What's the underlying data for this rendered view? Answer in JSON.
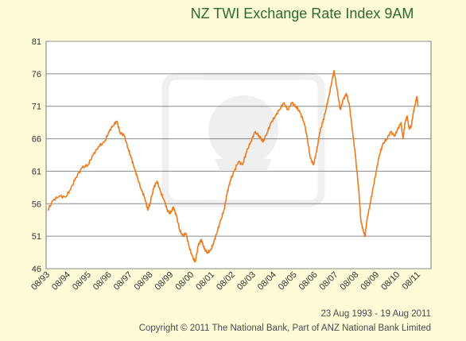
{
  "chart_data": {
    "type": "line",
    "title": "NZ TWI Exchange Rate Index 9AM",
    "date_range": "23 Aug 1993 - 19 Aug 2011",
    "copyright": "Copyright © 2011 The National Bank, Part of ANZ National Bank Limited",
    "xlabel": "",
    "ylabel": "",
    "ylim": [
      46,
      81
    ],
    "y_ticks": [
      46,
      51,
      56,
      61,
      66,
      71,
      76,
      81
    ],
    "x_ticks": [
      "08/93",
      "08/94",
      "08/95",
      "08/96",
      "08/97",
      "08/98",
      "08/99",
      "08/00",
      "08/01",
      "08/02",
      "08/03",
      "08/04",
      "08/05",
      "08/06",
      "08/07",
      "08/08",
      "08/09",
      "08/10",
      "08/11"
    ],
    "grid": "horizontal",
    "colors": {
      "line": "#f07a1a",
      "grid": "#8c8c8c",
      "plot_bg": "#ffffff",
      "page_bg": "#fefbd8",
      "title": "#2d6a2d"
    },
    "series": [
      {
        "values": [
          [
            1993.64,
            55.0
          ],
          [
            1993.9,
            56.5
          ],
          [
            1994.2,
            57.2
          ],
          [
            1994.5,
            57.0
          ],
          [
            1994.75,
            58.2
          ],
          [
            1995.0,
            60.0
          ],
          [
            1995.3,
            61.5
          ],
          [
            1995.6,
            62.0
          ],
          [
            1995.85,
            63.5
          ],
          [
            1996.1,
            64.8
          ],
          [
            1996.4,
            65.5
          ],
          [
            1996.6,
            67.0
          ],
          [
            1996.8,
            68.0
          ],
          [
            1997.0,
            68.7
          ],
          [
            1997.15,
            67.0
          ],
          [
            1997.35,
            66.5
          ],
          [
            1997.55,
            64.5
          ],
          [
            1997.7,
            63.0
          ],
          [
            1997.85,
            61.5
          ],
          [
            1998.0,
            60.0
          ],
          [
            1998.2,
            58.0
          ],
          [
            1998.35,
            57.0
          ],
          [
            1998.5,
            55.0
          ],
          [
            1998.6,
            56.0
          ],
          [
            1998.8,
            58.5
          ],
          [
            1998.95,
            59.5
          ],
          [
            1999.1,
            58.0
          ],
          [
            1999.3,
            56.5
          ],
          [
            1999.45,
            55.0
          ],
          [
            1999.6,
            54.5
          ],
          [
            1999.75,
            55.5
          ],
          [
            1999.9,
            54.0
          ],
          [
            2000.05,
            52.0
          ],
          [
            2000.2,
            51.0
          ],
          [
            2000.35,
            51.5
          ],
          [
            2000.5,
            49.5
          ],
          [
            2000.65,
            48.0
          ],
          [
            2000.8,
            47.0
          ],
          [
            2000.95,
            49.5
          ],
          [
            2001.1,
            50.5
          ],
          [
            2001.25,
            49.0
          ],
          [
            2001.4,
            48.5
          ],
          [
            2001.55,
            48.8
          ],
          [
            2001.7,
            50.0
          ],
          [
            2001.85,
            51.5
          ],
          [
            2002.0,
            53.0
          ],
          [
            2002.2,
            55.0
          ],
          [
            2002.35,
            57.5
          ],
          [
            2002.5,
            59.5
          ],
          [
            2002.7,
            61.0
          ],
          [
            2002.9,
            62.5
          ],
          [
            2003.1,
            62.0
          ],
          [
            2003.3,
            64.0
          ],
          [
            2003.5,
            65.5
          ],
          [
            2003.7,
            67.0
          ],
          [
            2003.9,
            66.5
          ],
          [
            2004.1,
            65.5
          ],
          [
            2004.3,
            67.0
          ],
          [
            2004.5,
            68.5
          ],
          [
            2004.7,
            69.5
          ],
          [
            2004.9,
            70.5
          ],
          [
            2005.1,
            71.5
          ],
          [
            2005.3,
            70.5
          ],
          [
            2005.5,
            71.5
          ],
          [
            2005.7,
            71.0
          ],
          [
            2005.9,
            70.0
          ],
          [
            2006.1,
            68.5
          ],
          [
            2006.25,
            66.0
          ],
          [
            2006.4,
            63.0
          ],
          [
            2006.55,
            62.0
          ],
          [
            2006.7,
            64.0
          ],
          [
            2006.85,
            67.0
          ],
          [
            2007.0,
            68.5
          ],
          [
            2007.15,
            70.5
          ],
          [
            2007.3,
            72.5
          ],
          [
            2007.45,
            75.0
          ],
          [
            2007.55,
            76.5
          ],
          [
            2007.7,
            73.5
          ],
          [
            2007.85,
            70.5
          ],
          [
            2008.0,
            72.0
          ],
          [
            2008.15,
            73.0
          ],
          [
            2008.3,
            71.0
          ],
          [
            2008.45,
            67.0
          ],
          [
            2008.6,
            63.0
          ],
          [
            2008.75,
            58.0
          ],
          [
            2008.85,
            53.5
          ],
          [
            2008.95,
            52.0
          ],
          [
            2009.05,
            51.0
          ],
          [
            2009.15,
            53.5
          ],
          [
            2009.3,
            56.0
          ],
          [
            2009.45,
            58.5
          ],
          [
            2009.6,
            61.0
          ],
          [
            2009.75,
            63.5
          ],
          [
            2009.9,
            65.0
          ],
          [
            2010.1,
            66.0
          ],
          [
            2010.3,
            67.0
          ],
          [
            2010.5,
            66.5
          ],
          [
            2010.65,
            67.5
          ],
          [
            2010.8,
            68.5
          ],
          [
            2010.9,
            66.0
          ],
          [
            2011.0,
            68.5
          ],
          [
            2011.1,
            69.5
          ],
          [
            2011.2,
            67.5
          ],
          [
            2011.3,
            68.0
          ],
          [
            2011.4,
            70.0
          ],
          [
            2011.5,
            71.5
          ],
          [
            2011.58,
            72.5
          ],
          [
            2011.63,
            71.0
          ]
        ]
      }
    ]
  }
}
